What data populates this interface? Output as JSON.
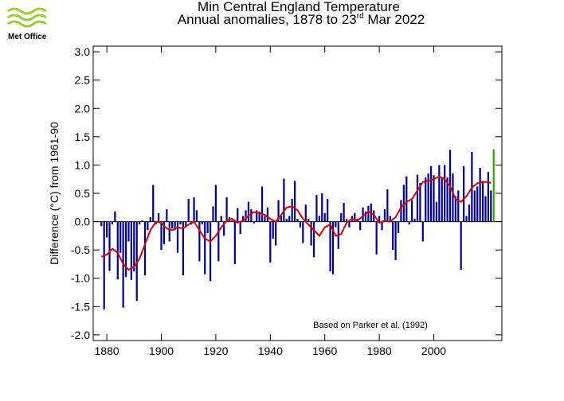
{
  "logo": "Met Office",
  "chart_data": {
    "type": "bar",
    "title": "Min Central England Temperature",
    "subtitle_parts": [
      "Annual anomalies, 1878 to 23",
      "rd",
      " Mar 2022"
    ],
    "y_label": "Difference (°C) from 1961-90",
    "annotation": "Based on Parker et al. (1992)",
    "xlim": [
      1875,
      2025
    ],
    "xticks": [
      1880,
      1900,
      1920,
      1940,
      1960,
      1980,
      2000
    ],
    "ylim": [
      -2.1,
      3.1
    ],
    "yticks": [
      {
        "value": -2,
        "label": "-2.0"
      },
      -1.5,
      {
        "value": -1,
        "label": "-1.0"
      },
      -0.5,
      {
        "value": 0,
        "label": "0.0"
      },
      0.5,
      {
        "value": 1,
        "label": "1.0"
      },
      1.5,
      {
        "value": 2,
        "label": "2.0"
      },
      2.5,
      {
        "value": 3,
        "label": "3.0"
      }
    ],
    "series": [
      {
        "type": "bar",
        "color": "#000099",
        "current_year_color": "#33aa00",
        "x": [
          1878,
          1879,
          1880,
          1881,
          1882,
          1883,
          1884,
          1885,
          1886,
          1887,
          1888,
          1889,
          1890,
          1891,
          1892,
          1893,
          1894,
          1895,
          1896,
          1897,
          1898,
          1899,
          1900,
          1901,
          1902,
          1903,
          1904,
          1905,
          1906,
          1907,
          1908,
          1909,
          1910,
          1911,
          1912,
          1913,
          1914,
          1915,
          1916,
          1917,
          1918,
          1919,
          1920,
          1921,
          1922,
          1923,
          1924,
          1925,
          1926,
          1927,
          1928,
          1929,
          1930,
          1931,
          1932,
          1933,
          1934,
          1935,
          1936,
          1937,
          1938,
          1939,
          1940,
          1941,
          1942,
          1943,
          1944,
          1945,
          1946,
          1947,
          1948,
          1949,
          1950,
          1951,
          1952,
          1953,
          1954,
          1955,
          1956,
          1957,
          1958,
          1959,
          1960,
          1961,
          1962,
          1963,
          1964,
          1965,
          1966,
          1967,
          1968,
          1969,
          1970,
          1971,
          1972,
          1973,
          1974,
          1975,
          1976,
          1977,
          1978,
          1979,
          1980,
          1981,
          1982,
          1983,
          1984,
          1985,
          1986,
          1987,
          1988,
          1989,
          1990,
          1991,
          1992,
          1993,
          1994,
          1995,
          1996,
          1997,
          1998,
          1999,
          2000,
          2001,
          2002,
          2003,
          2004,
          2005,
          2006,
          2007,
          2008,
          2009,
          2010,
          2011,
          2012,
          2013,
          2014,
          2015,
          2016,
          2017,
          2018,
          2019,
          2020,
          2021,
          2022
        ],
        "values": [
          -0.08,
          -1.55,
          -0.28,
          -0.87,
          -0.05,
          0.18,
          -1.02,
          -0.55,
          -1.52,
          -0.98,
          -0.35,
          -1.03,
          -0.88,
          -1.4,
          -0.05,
          0.02,
          -0.95,
          -0.15,
          0.08,
          0.65,
          -0.05,
          0.15,
          -0.5,
          -0.4,
          0.22,
          -0.35,
          -0.12,
          -0.15,
          -0.55,
          -0.05,
          -0.95,
          -0.1,
          0.4,
          -0.05,
          0.43,
          0.2,
          -0.7,
          -0.05,
          -0.93,
          -0.2,
          -1.05,
          0.27,
          0.65,
          -0.7,
          0.1,
          -0.25,
          0.43,
          0.08,
          0.02,
          -0.75,
          0.24,
          -0.22,
          0.1,
          0.2,
          0.35,
          0.22,
          -0.03,
          0.2,
          0.18,
          0.62,
          0.1,
          0.25,
          -0.72,
          -0.3,
          -0.42,
          0.38,
          0.1,
          0.76,
          0.05,
          0.1,
          0.4,
          0.72,
          0.05,
          -0.1,
          -0.38,
          0.3,
          0.05,
          -0.42,
          -0.63,
          0.47,
          0.1,
          0.5,
          0.15,
          0.4,
          -0.88,
          -0.93,
          -0.1,
          -0.48,
          0.15,
          0.33,
          0.05,
          -0.1,
          0.1,
          0.15,
          0.05,
          -0.15,
          0.25,
          0.18,
          0.28,
          0.32,
          0.2,
          -0.58,
          0.1,
          -0.15,
          0.22,
          0.57,
          0.1,
          -0.5,
          -0.68,
          -0.2,
          0.38,
          0.65,
          0.8,
          -0.05,
          0.38,
          0.05,
          0.83,
          0.68,
          -0.35,
          0.78,
          0.85,
          0.98,
          0.82,
          0.35,
          1.0,
          0.78,
          1.0,
          0.78,
          1.27,
          0.85,
          0.45,
          0.55,
          -0.85,
          0.98,
          0.1,
          0.3,
          1.23,
          0.55,
          0.62,
          0.95,
          0.72,
          0.45,
          0.88,
          0.55,
          1.28
        ]
      },
      {
        "type": "line",
        "color": "#dd0000",
        "x": [
          1878,
          1880,
          1882,
          1884,
          1886,
          1888,
          1890,
          1892,
          1894,
          1896,
          1898,
          1900,
          1902,
          1904,
          1906,
          1908,
          1910,
          1912,
          1914,
          1916,
          1918,
          1920,
          1922,
          1924,
          1926,
          1928,
          1930,
          1932,
          1934,
          1936,
          1938,
          1940,
          1942,
          1944,
          1946,
          1948,
          1950,
          1952,
          1954,
          1956,
          1958,
          1960,
          1962,
          1964,
          1966,
          1968,
          1970,
          1972,
          1974,
          1976,
          1978,
          1980,
          1982,
          1984,
          1986,
          1988,
          1990,
          1992,
          1994,
          1996,
          1998,
          2000,
          2002,
          2004,
          2006,
          2008,
          2010,
          2012,
          2014,
          2016,
          2018,
          2020,
          2021
        ],
        "values": [
          -0.62,
          -0.58,
          -0.48,
          -0.55,
          -0.75,
          -0.85,
          -0.8,
          -0.65,
          -0.4,
          -0.15,
          0.0,
          -0.02,
          -0.12,
          -0.15,
          -0.1,
          -0.12,
          -0.05,
          0.0,
          -0.15,
          -0.3,
          -0.35,
          -0.25,
          -0.1,
          0.02,
          0.05,
          -0.02,
          0.02,
          0.1,
          0.17,
          0.15,
          0.12,
          0.05,
          0.0,
          0.12,
          0.25,
          0.27,
          0.2,
          0.05,
          -0.05,
          -0.15,
          -0.25,
          -0.1,
          -0.05,
          -0.25,
          -0.22,
          -0.02,
          0.05,
          0.02,
          0.1,
          0.18,
          0.12,
          -0.02,
          0.02,
          0.0,
          0.08,
          0.25,
          0.35,
          0.4,
          0.55,
          0.7,
          0.72,
          0.75,
          0.8,
          0.75,
          0.62,
          0.4,
          0.35,
          0.45,
          0.6,
          0.68,
          0.7,
          0.7,
          0.68
        ]
      }
    ]
  }
}
